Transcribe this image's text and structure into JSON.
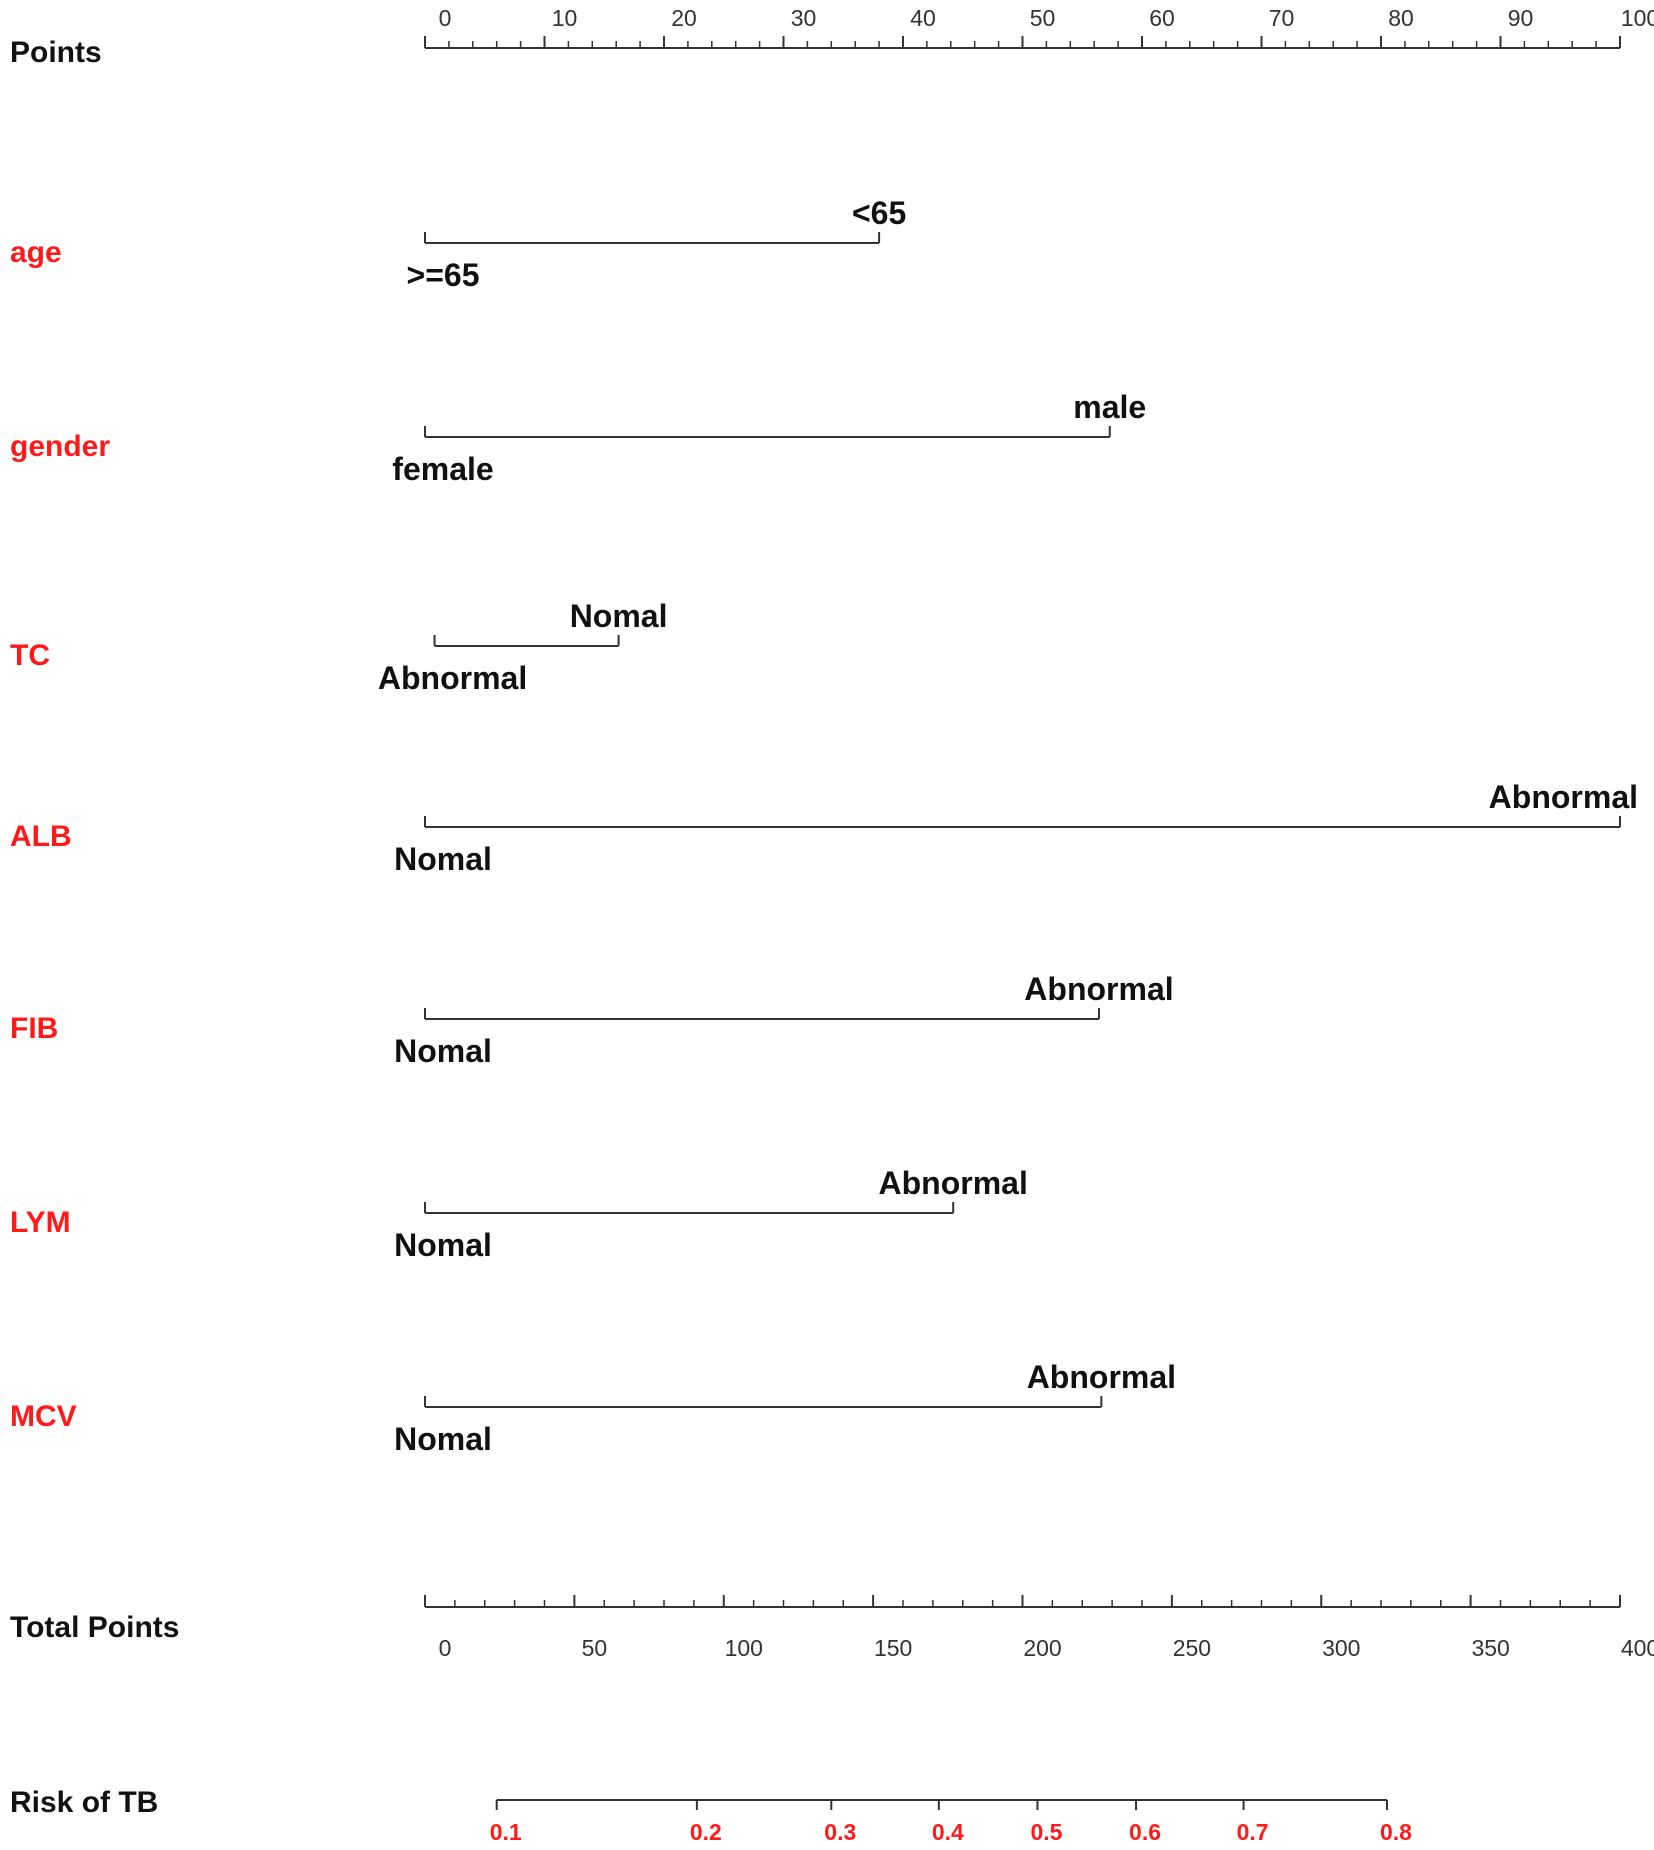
{
  "colors": {
    "variable_label": "#ff1a1a",
    "risk_tick_label": "#ff1a1a",
    "text": "#111111",
    "axis": "#333333"
  },
  "chart_data": {
    "type": "nomogram",
    "points_axis": {
      "label": "Points",
      "range": [
        0,
        100
      ],
      "ticks": [
        0,
        10,
        20,
        30,
        40,
        50,
        60,
        70,
        80,
        90,
        100
      ],
      "tick_labels": [
        "0",
        "10",
        "20",
        "30",
        "40",
        "50",
        "60",
        "70",
        "80",
        "90",
        "100"
      ]
    },
    "variables": [
      {
        "name": "age",
        "levels": [
          {
            "label": "<65",
            "points": 38
          },
          {
            "label": ">=65",
            "points": 0
          }
        ]
      },
      {
        "name": "gender",
        "levels": [
          {
            "label": "male",
            "points": 57.3
          },
          {
            "label": "female",
            "points": 0
          }
        ]
      },
      {
        "name": "TC",
        "levels": [
          {
            "label": "Nomal",
            "points": 16.2
          },
          {
            "label": "Abnormal",
            "points": 0.8
          }
        ]
      },
      {
        "name": "ALB",
        "levels": [
          {
            "label": "Abnormal",
            "points": 100
          },
          {
            "label": "Nomal",
            "points": 0
          }
        ]
      },
      {
        "name": "FIB",
        "levels": [
          {
            "label": "Abnormal",
            "points": 56.4
          },
          {
            "label": "Nomal",
            "points": 0
          }
        ]
      },
      {
        "name": "LYM",
        "levels": [
          {
            "label": "Abnormal",
            "points": 44.2
          },
          {
            "label": "Nomal",
            "points": 0
          }
        ]
      },
      {
        "name": "MCV",
        "levels": [
          {
            "label": "Abnormal",
            "points": 56.6
          },
          {
            "label": "Nomal",
            "points": 0
          }
        ]
      }
    ],
    "total_points_axis": {
      "label": "Total Points",
      "range": [
        0,
        400
      ],
      "ticks": [
        0,
        50,
        100,
        150,
        200,
        250,
        300,
        350,
        400
      ],
      "tick_labels": [
        "0",
        "50",
        "100",
        "150",
        "200",
        "250",
        "300",
        "350",
        "400"
      ]
    },
    "risk_axis": {
      "label": "Risk of TB",
      "ticks": [
        {
          "label": "0.1",
          "total_points": 24
        },
        {
          "label": "0.2",
          "total_points": 91
        },
        {
          "label": "0.3",
          "total_points": 136
        },
        {
          "label": "0.4",
          "total_points": 172
        },
        {
          "label": "0.5",
          "total_points": 205
        },
        {
          "label": "0.6",
          "total_points": 238
        },
        {
          "label": "0.7",
          "total_points": 274
        },
        {
          "label": "0.8",
          "total_points": 322
        }
      ]
    }
  }
}
